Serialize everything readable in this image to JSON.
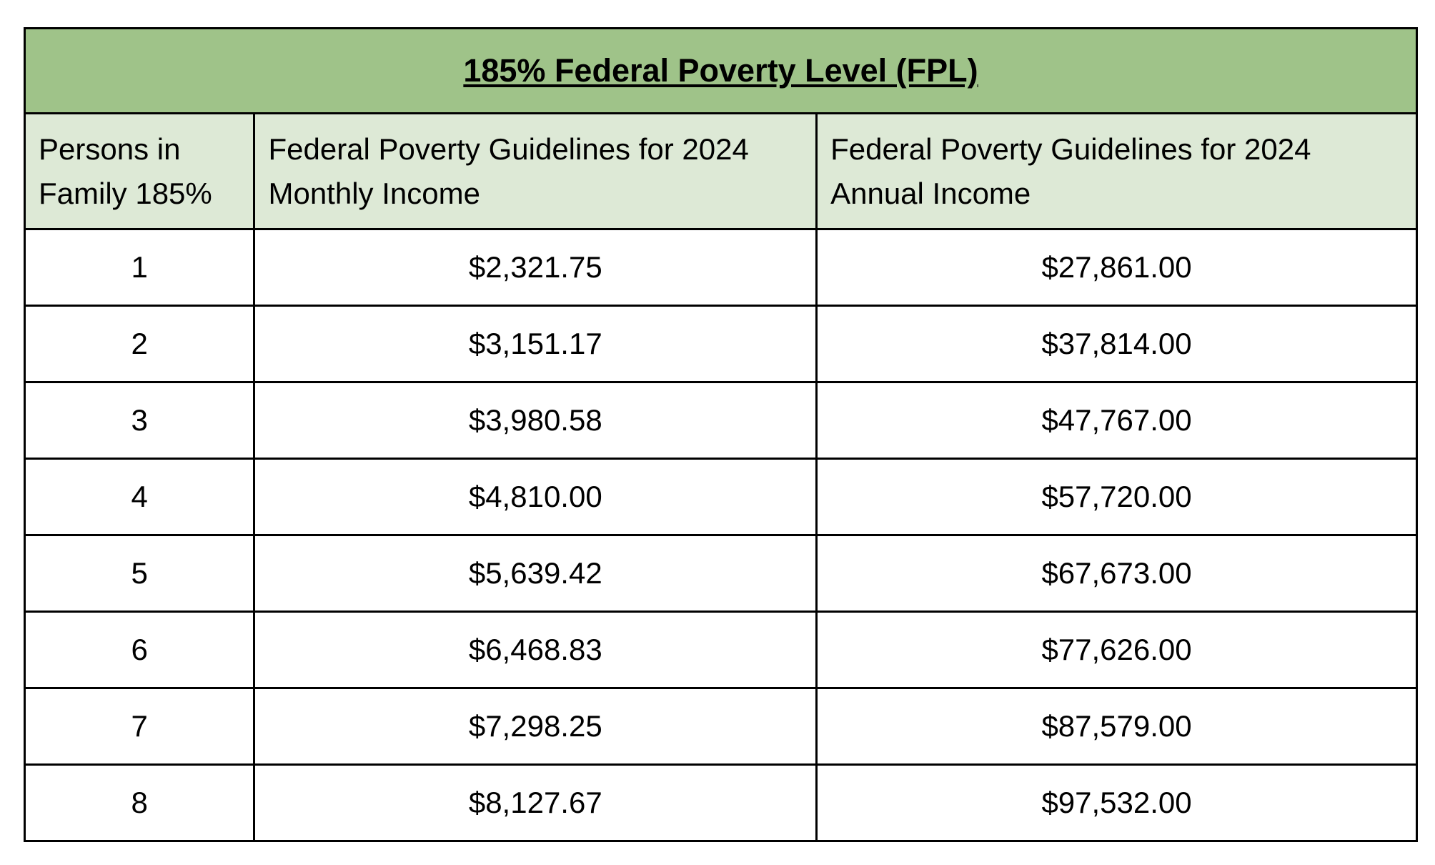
{
  "table": {
    "title": "185% Federal Poverty Level (FPL)",
    "headers": [
      {
        "line1": "Persons in",
        "line2": "Family 185%"
      },
      {
        "line1": "Federal Poverty Guidelines for 2024",
        "line2": "Monthly Income"
      },
      {
        "line1": "Federal Poverty Guidelines for 2024",
        "line2": "Annual Income"
      }
    ],
    "rows": [
      {
        "persons": "1",
        "monthly": "$2,321.75",
        "annual": "$27,861.00"
      },
      {
        "persons": "2",
        "monthly": "$3,151.17",
        "annual": "$37,814.00"
      },
      {
        "persons": "3",
        "monthly": "$3,980.58",
        "annual": "$47,767.00"
      },
      {
        "persons": "4",
        "monthly": "$4,810.00",
        "annual": "$57,720.00"
      },
      {
        "persons": "5",
        "monthly": "$5,639.42",
        "annual": "$67,673.00"
      },
      {
        "persons": "6",
        "monthly": "$6,468.83",
        "annual": "$77,626.00"
      },
      {
        "persons": "7",
        "monthly": "$7,298.25",
        "annual": "$87,579.00"
      },
      {
        "persons": "8",
        "monthly": "$8,127.67",
        "annual": "$97,532.00"
      }
    ]
  },
  "colors": {
    "title_background": "#9fc389",
    "header_background": "#dde9d6",
    "border": "#000000"
  }
}
